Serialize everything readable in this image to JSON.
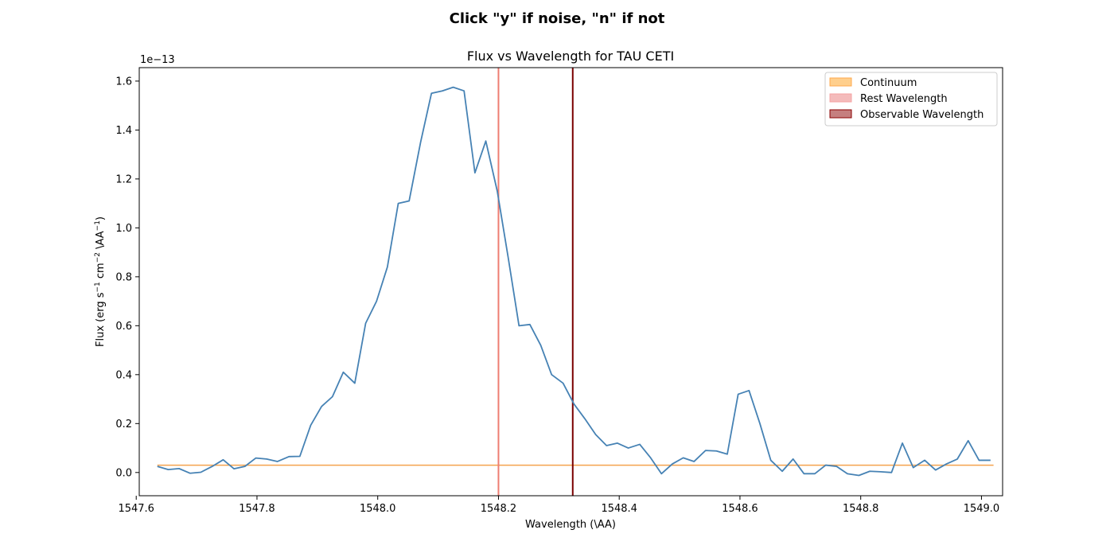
{
  "figure": {
    "suptitle": "Click \"y\" if noise, \"n\" if not"
  },
  "chart_data": {
    "type": "line",
    "title": "Flux vs Wavelength for TAU CETI",
    "xlabel": "Wavelength (\\AA)",
    "ylabel_parts": {
      "a": "Flux (erg s",
      "a_sup": "−1",
      "b": " cm",
      "b_sup": "−2",
      "c": " \\AA",
      "c_sup": "−1",
      "d": ")"
    },
    "y_offset_text": "1e−13",
    "xlim": [
      1547.605,
      1549.035
    ],
    "ylim": [
      -0.095,
      1.655
    ],
    "x_ticks": [
      1547.6,
      1547.8,
      1548.0,
      1548.2,
      1548.4,
      1548.6,
      1548.8,
      1549.0
    ],
    "x_tick_labels": [
      "1547.6",
      "1547.8",
      "1548.0",
      "1548.2",
      "1548.4",
      "1548.6",
      "1548.8",
      "1549.0"
    ],
    "y_ticks": [
      0.0,
      0.2,
      0.4,
      0.6,
      0.8,
      1.0,
      1.2,
      1.4,
      1.6
    ],
    "y_tick_labels": [
      "0.0",
      "0.2",
      "0.4",
      "0.6",
      "0.8",
      "1.0",
      "1.2",
      "1.4",
      "1.6"
    ],
    "legend_position": "top-right",
    "legend": [
      {
        "label": "Continuum",
        "color": "#ff9f1c",
        "edge": "#ffa94d",
        "alpha": 0.5
      },
      {
        "label": "Rest Wavelength",
        "color": "#e97777",
        "edge": "#f4a3a3",
        "alpha": 0.5
      },
      {
        "label": "Observable Wavelength",
        "color": "#8b0000",
        "edge": "#8b0000",
        "alpha": 0.5
      }
    ],
    "continuum": {
      "y": 0.03,
      "x_start": 1547.635,
      "x_end": 1549.02,
      "color": "#f4a24e"
    },
    "rest_wavelength": {
      "x": 1548.2,
      "color": "#ee7d72"
    },
    "observable_wavelength": {
      "x": 1548.323,
      "color": "#7a0000"
    },
    "series": [
      {
        "color": "#4682b4",
        "x": [
          1547.635,
          1547.653,
          1547.671,
          1547.689,
          1547.707,
          1547.726,
          1547.744,
          1547.762,
          1547.78,
          1547.798,
          1547.816,
          1547.834,
          1547.853,
          1547.871,
          1547.889,
          1547.907,
          1547.925,
          1547.943,
          1547.962,
          1547.98,
          1547.998,
          1548.016,
          1548.034,
          1548.052,
          1548.071,
          1548.089,
          1548.107,
          1548.125,
          1548.143,
          1548.161,
          1548.179,
          1548.198,
          1548.216,
          1548.234,
          1548.252,
          1548.27,
          1548.288,
          1548.307,
          1548.325,
          1548.343,
          1548.361,
          1548.379,
          1548.397,
          1548.415,
          1548.434,
          1548.452,
          1548.47,
          1548.488,
          1548.506,
          1548.524,
          1548.543,
          1548.561,
          1548.579,
          1548.597,
          1548.615,
          1548.633,
          1548.651,
          1548.67,
          1548.688,
          1548.706,
          1548.724,
          1548.742,
          1548.76,
          1548.778,
          1548.797,
          1548.815,
          1548.833,
          1548.851,
          1548.869,
          1548.887,
          1548.906,
          1548.924,
          1548.942,
          1548.96,
          1548.978,
          1548.996,
          1549.015
        ],
        "y": [
          0.025,
          0.012,
          0.016,
          -0.003,
          0.001,
          0.025,
          0.052,
          0.015,
          0.025,
          0.059,
          0.055,
          0.045,
          0.065,
          0.066,
          0.193,
          0.27,
          0.31,
          0.41,
          0.365,
          0.61,
          0.7,
          0.84,
          1.1,
          1.11,
          1.35,
          1.55,
          1.56,
          1.575,
          1.56,
          1.225,
          1.355,
          1.15,
          0.88,
          0.6,
          0.605,
          0.52,
          0.4,
          0.365,
          0.28,
          0.22,
          0.155,
          0.11,
          0.12,
          0.1,
          0.115,
          0.06,
          -0.005,
          0.035,
          0.06,
          0.045,
          0.09,
          0.088,
          0.075,
          0.32,
          0.335,
          0.2,
          0.05,
          0.005,
          0.055,
          -0.005,
          -0.005,
          0.03,
          0.025,
          -0.005,
          -0.012,
          0.005,
          0.003,
          0.0,
          0.12,
          0.02,
          0.05,
          0.01,
          0.035,
          0.055,
          0.13,
          0.05,
          0.05
        ]
      }
    ]
  }
}
